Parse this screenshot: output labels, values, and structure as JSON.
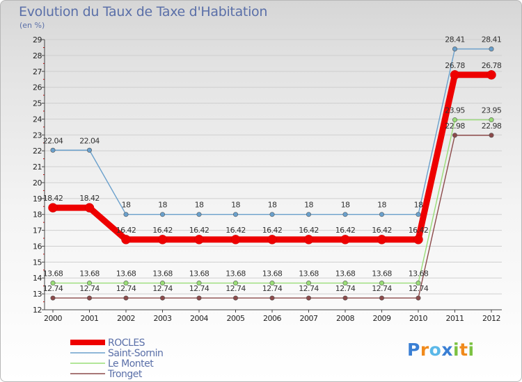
{
  "chart_data": {
    "type": "line",
    "title": "Evolution du Taux de Taxe d'Habitation",
    "unit_label": "(en %)",
    "xlabel": "",
    "ylabel": "(en %)",
    "ylim": [
      12,
      29
    ],
    "yticks": [
      12,
      13,
      14,
      15,
      16,
      17,
      18,
      19,
      20,
      21,
      22,
      23,
      24,
      25,
      26,
      27,
      28,
      29
    ],
    "categories": [
      "2000",
      "2001",
      "2002",
      "2003",
      "2004",
      "2005",
      "2006",
      "2007",
      "2008",
      "2009",
      "2010",
      "2011",
      "2012"
    ],
    "series": [
      {
        "name": "ROCLES",
        "color": "#ee0000",
        "values": [
          18.42,
          18.42,
          16.42,
          16.42,
          16.42,
          16.42,
          16.42,
          16.42,
          16.42,
          16.42,
          16.42,
          26.78,
          26.78
        ],
        "labels": [
          "18.42",
          "18.42",
          "16.42",
          "16.42",
          "16.42",
          "16.42",
          "16.42",
          "16.42",
          "16.42",
          "16.42",
          "16.42",
          "26.78",
          "26.78"
        ]
      },
      {
        "name": "Saint-Sornin",
        "color": "#6aa0cc",
        "values": [
          22.04,
          22.04,
          18,
          18,
          18,
          18,
          18,
          18,
          18,
          18,
          18,
          28.41,
          28.41
        ],
        "labels": [
          "22.04",
          "22.04",
          "18",
          "18",
          "18",
          "18",
          "18",
          "18",
          "18",
          "18",
          "18",
          "28.41",
          "28.41"
        ]
      },
      {
        "name": "Le Montet",
        "color": "#99dd77",
        "values": [
          13.68,
          13.68,
          13.68,
          13.68,
          13.68,
          13.68,
          13.68,
          13.68,
          13.68,
          13.68,
          13.68,
          23.95,
          23.95
        ],
        "labels": [
          "13.68",
          "13.68",
          "13.68",
          "13.68",
          "13.68",
          "13.68",
          "13.68",
          "13.68",
          "13.68",
          "13.68",
          "13.68",
          "23.95",
          "23.95"
        ]
      },
      {
        "name": "Tronget",
        "color": "#8b4a4a",
        "values": [
          12.74,
          12.74,
          12.74,
          12.74,
          12.74,
          12.74,
          12.74,
          12.74,
          12.74,
          12.74,
          12.74,
          22.98,
          22.98
        ],
        "labels": [
          "12.74",
          "12.74",
          "12.74",
          "12.74",
          "12.74",
          "12.74",
          "12.74",
          "12.74",
          "12.74",
          "12.74",
          "12.74",
          "22.98",
          "22.98"
        ]
      }
    ],
    "legend": [
      "ROCLES",
      "Saint-Sornin",
      "Le Montet",
      "Tronget"
    ],
    "legend_position": "bottom-left"
  },
  "logo": {
    "letters": [
      "P",
      "r",
      "o",
      "x",
      "i",
      "t",
      "i"
    ],
    "colors": [
      "#3a7fd4",
      "#f08a1c",
      "#5bb8e8",
      "#3a7fd4",
      "#7cc242",
      "#f08a1c",
      "#7cc242"
    ]
  }
}
